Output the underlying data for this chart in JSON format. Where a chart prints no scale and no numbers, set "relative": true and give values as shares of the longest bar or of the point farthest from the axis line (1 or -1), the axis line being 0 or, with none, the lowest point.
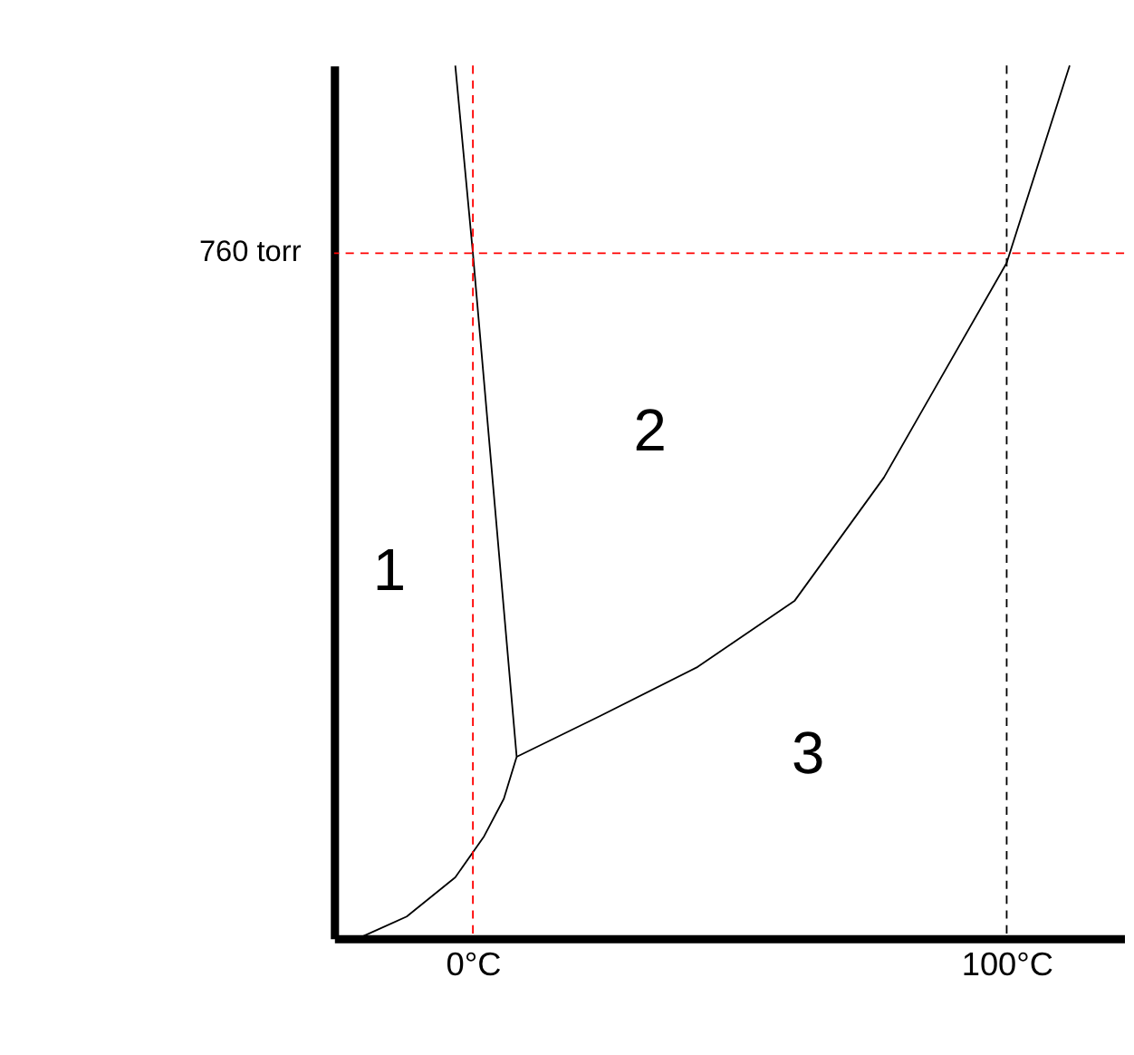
{
  "chart_data": {
    "type": "line",
    "relative": true,
    "legend": false,
    "marker": "none",
    "line_style": "solid",
    "xlim": [
      -26,
      122
    ],
    "xticks": [
      {
        "value": 0,
        "label": "0°C"
      },
      {
        "value": 100,
        "label": "100°C"
      }
    ],
    "series": [
      {
        "color": "#000000",
        "x": [
          -21.5,
          -12.4,
          -3.3,
          2.1,
          5.8,
          8.2,
          0,
          -3.3
        ],
        "values": [
          0,
          0.025,
          0.07,
          0.117,
          0.16,
          0.208,
          0.785,
          1.0
        ]
      },
      {
        "color": "#000000",
        "x": [
          8.2,
          23.9,
          42.1,
          60.3,
          77.0,
          100,
          111.8
        ],
        "values": [
          0.208,
          0.255,
          0.311,
          0.387,
          0.528,
          0.774,
          1.0
        ]
      }
    ],
    "ref_lines": [
      {
        "axis": "y",
        "value": 0.785,
        "label": "760 torr",
        "color": "#ff0000",
        "line_style": "dashed"
      },
      {
        "axis": "x",
        "value": 0,
        "color": "#ff0000",
        "line_style": "dashed"
      },
      {
        "axis": "x",
        "value": 100,
        "color": "#000000",
        "line_style": "dashed"
      }
    ],
    "annotations": [
      "1",
      "2",
      "3"
    ]
  }
}
